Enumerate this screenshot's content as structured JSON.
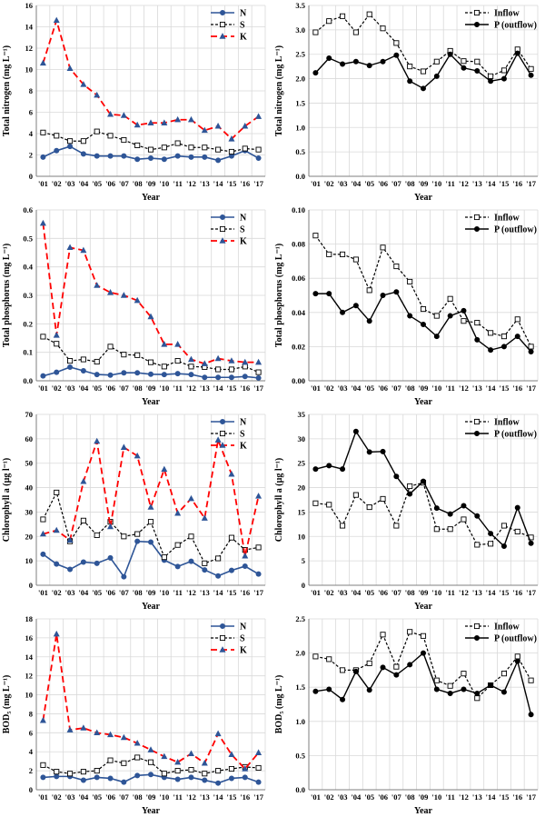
{
  "colors": {
    "N": "#2e5597",
    "S": "#000000",
    "K": "#ff0000",
    "grid": "#d9d9d9",
    "axis": "#7f7f7f"
  },
  "chart_data": [
    {
      "type": "line",
      "xlabel": "Year",
      "ylabel": "Total nitrogen (mg L⁻¹)",
      "ylim": [
        0,
        16
      ],
      "yticks": [
        0,
        2,
        4,
        6,
        8,
        10,
        12,
        14,
        16
      ],
      "ydecimals": 0,
      "legend": "top-right",
      "categories": [
        "'01",
        "'02",
        "'03",
        "'04",
        "'05",
        "'06",
        "'07",
        "'08",
        "'09",
        "'10",
        "'11",
        "'12",
        "'13",
        "'14",
        "'15",
        "'16",
        "'17"
      ],
      "series": [
        {
          "name": "N",
          "style": "N",
          "values": [
            1.8,
            2.4,
            2.8,
            2.1,
            1.9,
            1.9,
            1.9,
            1.6,
            1.7,
            1.6,
            1.9,
            1.8,
            1.8,
            1.5,
            1.9,
            2.4,
            1.7
          ]
        },
        {
          "name": "S",
          "style": "S",
          "values": [
            4.1,
            3.8,
            3.3,
            3.3,
            4.2,
            3.8,
            3.4,
            2.9,
            2.5,
            2.7,
            3.1,
            2.7,
            2.7,
            2.5,
            2.3,
            2.6,
            2.5
          ]
        },
        {
          "name": "K",
          "style": "K",
          "values": [
            10.6,
            14.6,
            10.1,
            8.6,
            7.6,
            5.8,
            5.7,
            4.8,
            5.0,
            5.0,
            5.3,
            5.3,
            4.3,
            4.7,
            3.5,
            4.7,
            5.6
          ]
        }
      ]
    },
    {
      "type": "line",
      "xlabel": "Year",
      "ylabel": "Total nitrogen (mg L⁻¹)",
      "ylim": [
        0,
        3.5
      ],
      "yticks": [
        0,
        0.5,
        1.0,
        1.5,
        2.0,
        2.5,
        3.0,
        3.5
      ],
      "ydecimals": 1,
      "legend": "top-right",
      "categories": [
        "'01",
        "'02",
        "'03",
        "'04",
        "'05",
        "'06",
        "'07",
        "'08",
        "'09",
        "'10",
        "'11",
        "'12",
        "'13",
        "'14",
        "'15",
        "'16",
        "'17"
      ],
      "series": [
        {
          "name": "Inflow",
          "style": "inflow",
          "values": [
            2.95,
            3.18,
            3.28,
            2.95,
            3.32,
            3.03,
            2.73,
            2.25,
            2.15,
            2.35,
            2.57,
            2.36,
            2.35,
            2.05,
            2.17,
            2.6,
            2.2
          ]
        },
        {
          "name": "P (outflow)",
          "style": "outflow",
          "values": [
            2.12,
            2.42,
            2.3,
            2.35,
            2.27,
            2.35,
            2.48,
            1.95,
            1.8,
            2.05,
            2.5,
            2.22,
            2.16,
            1.95,
            2.0,
            2.52,
            2.07
          ]
        }
      ]
    },
    {
      "type": "line",
      "xlabel": "Year",
      "ylabel": "Total phosphorus (mg L⁻¹)",
      "ylim": [
        0,
        0.6
      ],
      "yticks": [
        0,
        0.1,
        0.2,
        0.3,
        0.4,
        0.5,
        0.6
      ],
      "ydecimals": 1,
      "legend": "top-right",
      "categories": [
        "'01",
        "'02",
        "'03",
        "'04",
        "'05",
        "'06",
        "'07",
        "'08",
        "'09",
        "'10",
        "'11",
        "'12",
        "'13",
        "'14",
        "'15",
        "'16",
        "'17"
      ],
      "series": [
        {
          "name": "N",
          "style": "N",
          "values": [
            0.017,
            0.03,
            0.048,
            0.035,
            0.022,
            0.02,
            0.028,
            0.028,
            0.023,
            0.022,
            0.025,
            0.022,
            0.012,
            0.012,
            0.012,
            0.015,
            0.01
          ]
        },
        {
          "name": "S",
          "style": "S",
          "values": [
            0.155,
            0.13,
            0.07,
            0.075,
            0.067,
            0.12,
            0.092,
            0.09,
            0.065,
            0.05,
            0.07,
            0.05,
            0.048,
            0.04,
            0.04,
            0.05,
            0.03
          ]
        },
        {
          "name": "K",
          "style": "K",
          "values": [
            0.553,
            0.16,
            0.468,
            0.458,
            0.335,
            0.31,
            0.3,
            0.282,
            0.225,
            0.128,
            0.128,
            0.075,
            0.06,
            0.078,
            0.07,
            0.065,
            0.065
          ]
        }
      ]
    },
    {
      "type": "line",
      "xlabel": "Year",
      "ylabel": "Total phosphorus (mg L⁻¹)",
      "ylim": [
        0,
        0.1
      ],
      "yticks": [
        0,
        0.02,
        0.04,
        0.06,
        0.08,
        0.1
      ],
      "ydecimals": 2,
      "legend": "top-right",
      "categories": [
        "'01",
        "'02",
        "'03",
        "'04",
        "'05",
        "'06",
        "'07",
        "'08",
        "'09",
        "'10",
        "'11",
        "'12",
        "'13",
        "'14",
        "'15",
        "'16",
        "'17"
      ],
      "series": [
        {
          "name": "Inflow",
          "style": "inflow",
          "values": [
            0.085,
            0.074,
            0.074,
            0.071,
            0.053,
            0.078,
            0.067,
            0.058,
            0.042,
            0.038,
            0.048,
            0.035,
            0.034,
            0.028,
            0.026,
            0.036,
            0.02
          ]
        },
        {
          "name": "P (outflow)",
          "style": "outflow",
          "values": [
            0.051,
            0.051,
            0.04,
            0.044,
            0.035,
            0.05,
            0.052,
            0.038,
            0.033,
            0.026,
            0.038,
            0.041,
            0.024,
            0.018,
            0.02,
            0.026,
            0.017
          ]
        }
      ]
    },
    {
      "type": "line",
      "xlabel": "Year",
      "ylabel": "Chlorophyll a (µg l⁻¹)",
      "ylim": [
        0,
        70
      ],
      "yticks": [
        0,
        10,
        20,
        30,
        40,
        50,
        60,
        70
      ],
      "ydecimals": 0,
      "legend": "top-right",
      "categories": [
        "'01",
        "'02",
        "'03",
        "'04",
        "'05",
        "'06",
        "'07",
        "'08",
        "'09",
        "'10",
        "'11",
        "'12",
        "'13",
        "'14",
        "'15",
        "'16",
        "'17"
      ],
      "series": [
        {
          "name": "N",
          "style": "N",
          "values": [
            12.7,
            8.7,
            6.5,
            9.5,
            9.0,
            11.2,
            3.5,
            18.0,
            17.7,
            10.3,
            7.7,
            9.8,
            6.3,
            3.8,
            6.1,
            7.8,
            4.6
          ]
        },
        {
          "name": "S",
          "style": "S",
          "values": [
            27.0,
            38.0,
            18.0,
            26.5,
            20.5,
            26.0,
            20.0,
            21.0,
            26.0,
            11.5,
            16.5,
            20.0,
            9.0,
            11.0,
            19.5,
            14.5,
            15.5
          ]
        },
        {
          "name": "K",
          "style": "K",
          "values": [
            21.0,
            22.5,
            18.5,
            42.5,
            59.0,
            24.0,
            56.5,
            53.0,
            32.0,
            47.5,
            29.5,
            35.5,
            27.5,
            59.5,
            45.5,
            12.0,
            36.5
          ]
        }
      ]
    },
    {
      "type": "line",
      "xlabel": "Year",
      "ylabel": "Chlorophyll a (µg l⁻¹)",
      "ylim": [
        0,
        35
      ],
      "yticks": [
        0,
        5,
        10,
        15,
        20,
        25,
        30,
        35
      ],
      "ydecimals": 0,
      "legend": "top-right",
      "categories": [
        "'01",
        "'02",
        "'03",
        "'04",
        "'05",
        "'06",
        "'07",
        "'08",
        "'09",
        "'10",
        "'11",
        "'12",
        "'13",
        "'14",
        "'15",
        "'16",
        "'17"
      ],
      "series": [
        {
          "name": "Inflow",
          "style": "inflow",
          "values": [
            16.8,
            16.5,
            12.2,
            18.5,
            16.0,
            17.7,
            12.2,
            20.3,
            21.0,
            11.5,
            11.5,
            13.5,
            8.3,
            8.5,
            12.2,
            11.0,
            9.8
          ]
        },
        {
          "name": "P (outflow)",
          "style": "outflow",
          "values": [
            23.8,
            24.5,
            23.8,
            31.5,
            27.3,
            27.4,
            22.3,
            18.7,
            21.3,
            15.8,
            14.6,
            16.3,
            14.2,
            10.6,
            8.0,
            15.9,
            8.6
          ]
        }
      ]
    },
    {
      "type": "line",
      "xlabel": "Year",
      "ylabel": "BOD₅ (mg L⁻¹)",
      "ylim": [
        0,
        18
      ],
      "yticks": [
        0,
        2,
        4,
        6,
        8,
        10,
        12,
        14,
        16,
        18
      ],
      "ydecimals": 0,
      "legend": "top-right",
      "categories": [
        "'01",
        "'02",
        "'03",
        "'04",
        "'05",
        "'06",
        "'07",
        "'08",
        "'09",
        "'10",
        "'11",
        "'12",
        "'13",
        "'14",
        "'15",
        "'16",
        "'17"
      ],
      "series": [
        {
          "name": "N",
          "style": "N",
          "values": [
            1.3,
            1.4,
            1.4,
            1.0,
            1.3,
            1.2,
            0.8,
            1.5,
            1.6,
            1.3,
            1.1,
            1.3,
            1.0,
            0.7,
            1.2,
            1.3,
            0.8
          ]
        },
        {
          "name": "S",
          "style": "S",
          "values": [
            2.6,
            1.9,
            1.7,
            1.9,
            2.0,
            3.1,
            2.8,
            3.4,
            2.9,
            1.7,
            2.0,
            2.1,
            1.7,
            2.0,
            2.2,
            2.4,
            2.3
          ]
        },
        {
          "name": "K",
          "style": "K",
          "values": [
            7.3,
            16.4,
            6.3,
            6.5,
            6.0,
            5.8,
            5.5,
            4.9,
            4.2,
            3.5,
            2.9,
            3.8,
            2.8,
            5.9,
            3.7,
            2.2,
            3.9
          ]
        }
      ]
    },
    {
      "type": "line",
      "xlabel": "Year",
      "ylabel": "BOD₅ (mg L⁻¹)",
      "ylim": [
        0,
        2.5
      ],
      "yticks": [
        0,
        0.5,
        1.0,
        1.5,
        2.0,
        2.5
      ],
      "ydecimals": 1,
      "legend": "top-right",
      "categories": [
        "'01",
        "'02",
        "'03",
        "'04",
        "'05",
        "'06",
        "'07",
        "'08",
        "'09",
        "'10",
        "'11",
        "'12",
        "'13",
        "'14",
        "'15",
        "'16",
        "'17"
      ],
      "series": [
        {
          "name": "Inflow",
          "style": "inflow",
          "values": [
            1.95,
            1.91,
            1.75,
            1.75,
            1.85,
            2.27,
            1.8,
            2.31,
            2.25,
            1.6,
            1.52,
            1.7,
            1.34,
            1.53,
            1.7,
            1.95,
            1.6
          ]
        },
        {
          "name": "P (outflow)",
          "style": "outflow",
          "values": [
            1.44,
            1.47,
            1.32,
            1.73,
            1.46,
            1.79,
            1.68,
            1.83,
            2.0,
            1.47,
            1.41,
            1.47,
            1.41,
            1.53,
            1.43,
            1.88,
            1.1
          ]
        }
      ]
    }
  ]
}
